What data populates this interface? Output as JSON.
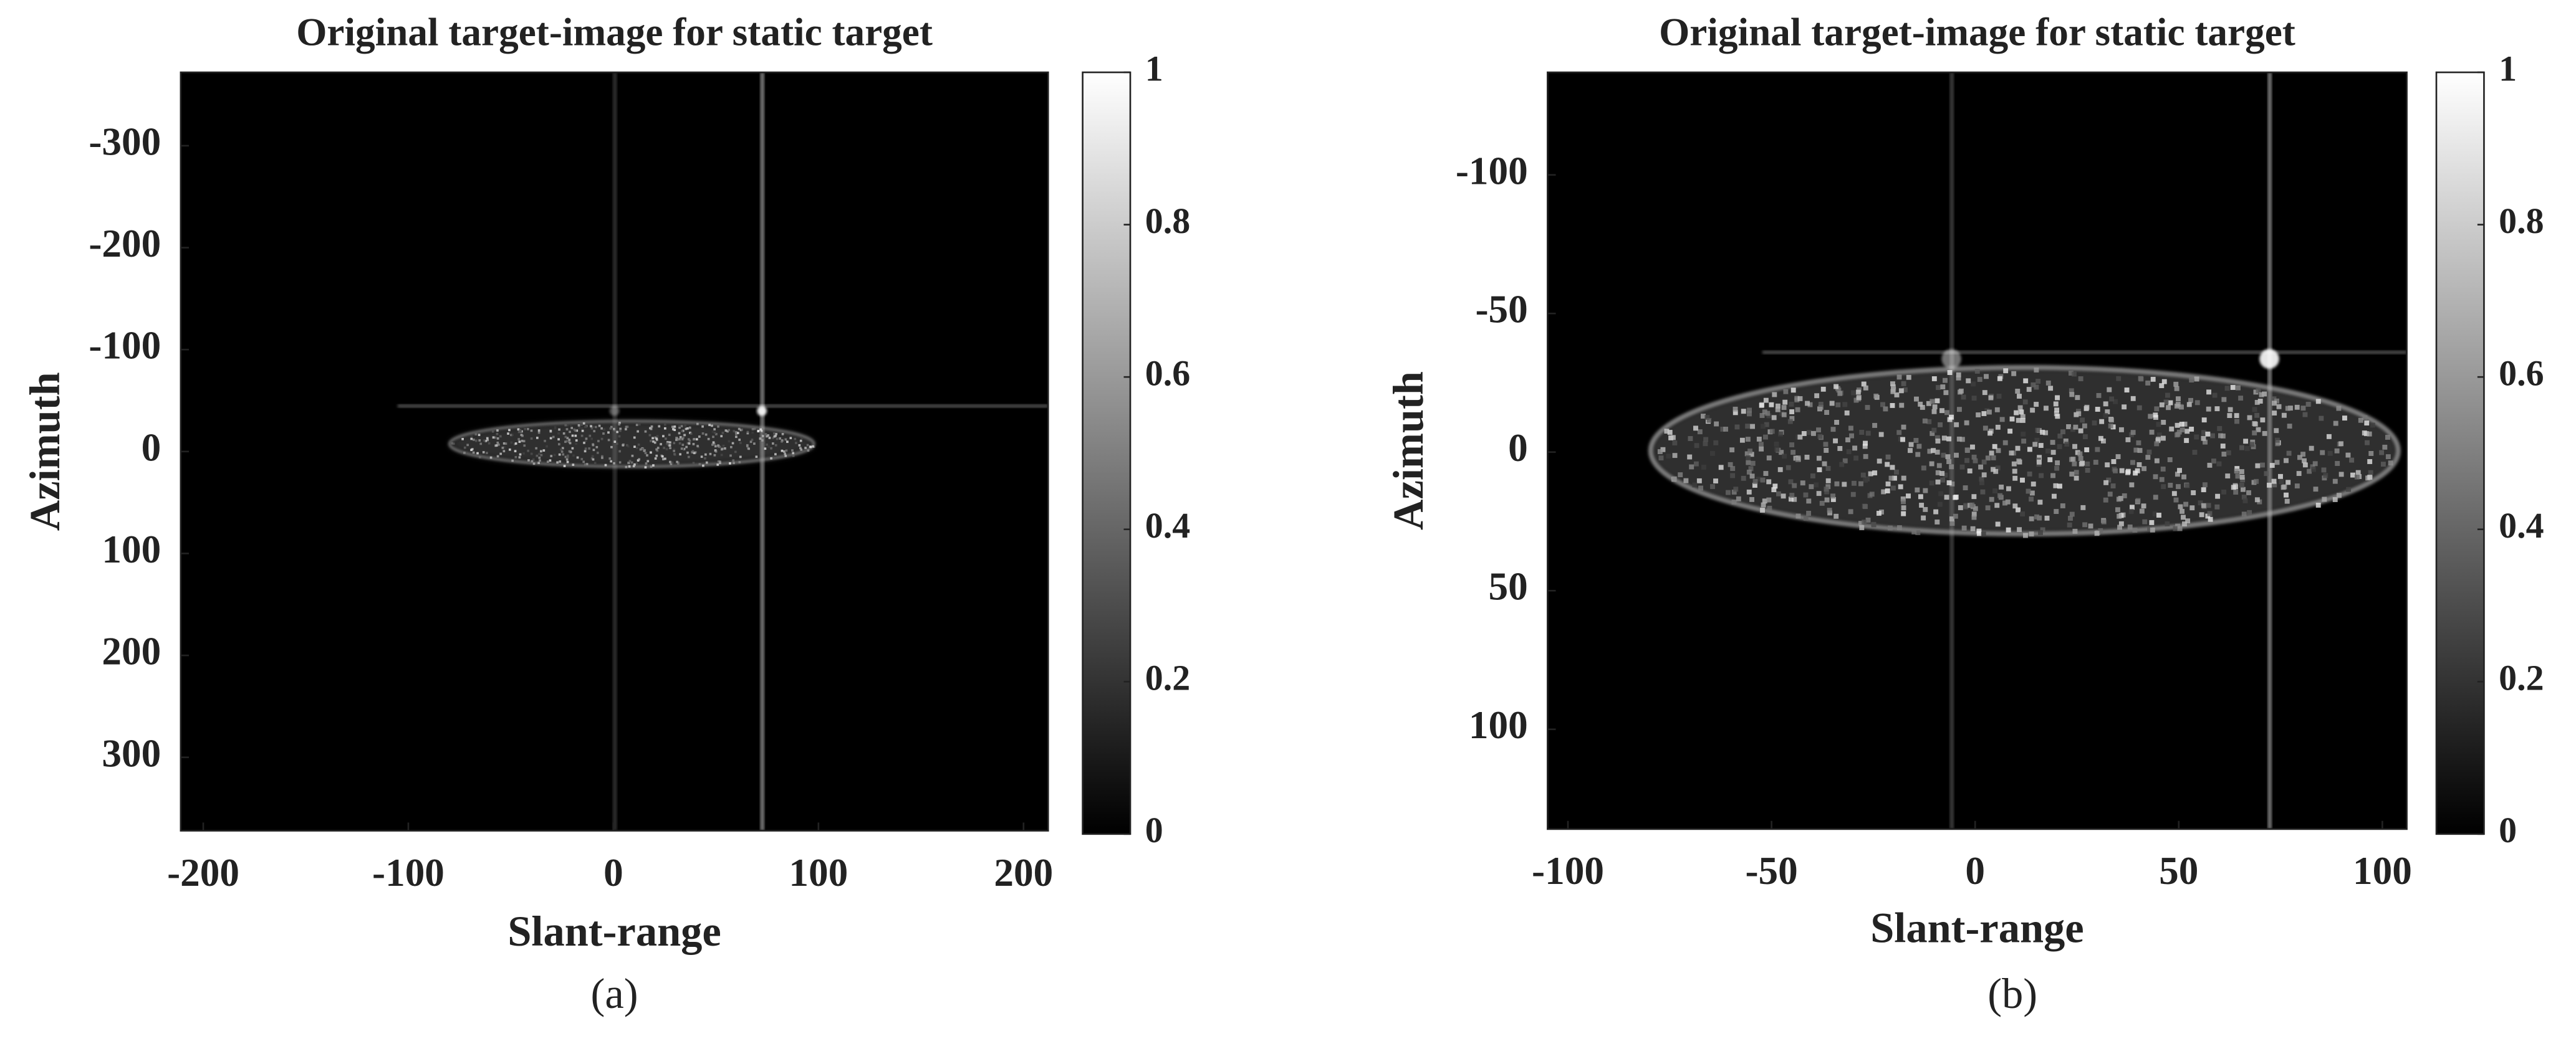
{
  "chart_data": [
    {
      "type": "heatmap",
      "title": "Original target-image for static target",
      "xlabel": "Slant-range",
      "ylabel": "Azimuth",
      "caption": "(a)",
      "xlim": [
        -211,
        212
      ],
      "ylim": [
        -372,
        372
      ],
      "y_reversed": true,
      "xticks": [
        -200,
        -100,
        0,
        100,
        200
      ],
      "yticks": [
        -300,
        -200,
        -100,
        0,
        100,
        200,
        300
      ],
      "colormap": [
        "#000000",
        "#ffffff"
      ],
      "colorbar": {
        "lim": [
          0,
          1
        ],
        "ticks": [
          0,
          0.2,
          0.4,
          0.6,
          0.8,
          1
        ]
      }
    },
    {
      "type": "heatmap",
      "title": "Original target-image for static target",
      "xlabel": "Slant-range",
      "ylabel": "Azimuth",
      "caption": "(b)",
      "xlim": [
        -105,
        106
      ],
      "ylim": [
        -137,
        136
      ],
      "y_reversed": true,
      "xticks": [
        -100,
        -50,
        0,
        50,
        100
      ],
      "yticks": [
        -100,
        -50,
        0,
        50,
        100
      ],
      "colormap": [
        "#000000",
        "#ffffff"
      ],
      "colorbar": {
        "lim": [
          0,
          1
        ],
        "ticks": [
          0,
          0.2,
          0.4,
          0.6,
          0.8,
          1
        ]
      }
    }
  ]
}
